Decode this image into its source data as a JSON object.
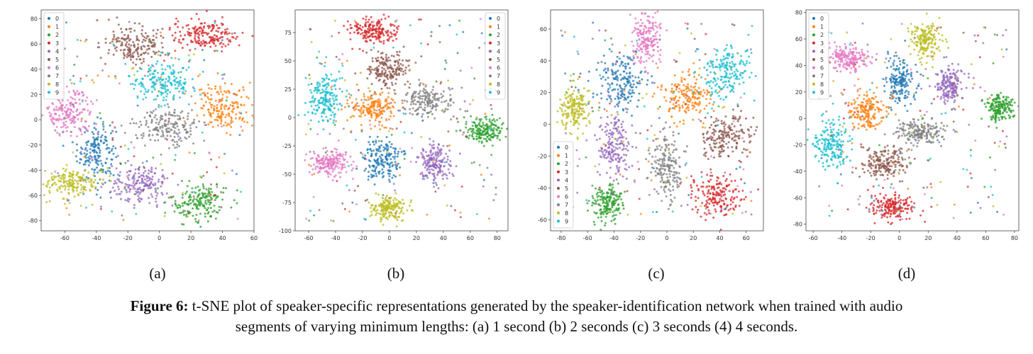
{
  "chart_data": [
    {
      "type": "scatter",
      "id": "a",
      "sublabel": "(a)",
      "xlim": [
        -75,
        60
      ],
      "ylim": [
        -88,
        87
      ],
      "xticks": [
        -60,
        -40,
        -20,
        0,
        20,
        40,
        60
      ],
      "yticks": [
        -80,
        -60,
        -40,
        -20,
        0,
        20,
        40,
        60,
        80
      ],
      "legend": "top-left",
      "clusters": [
        {
          "label": "0",
          "cx": -40,
          "cy": -25,
          "sx": 6,
          "sy": 12
        },
        {
          "label": "1",
          "cx": 42,
          "cy": 10,
          "sx": 9,
          "sy": 9
        },
        {
          "label": "2",
          "cx": 25,
          "cy": -65,
          "sx": 9,
          "sy": 8
        },
        {
          "label": "3",
          "cx": 30,
          "cy": 67,
          "sx": 11,
          "sy": 6
        },
        {
          "label": "4",
          "cx": -12,
          "cy": -52,
          "sx": 9,
          "sy": 8
        },
        {
          "label": "5",
          "cx": -15,
          "cy": 60,
          "sx": 10,
          "sy": 8
        },
        {
          "label": "6",
          "cx": -57,
          "cy": 5,
          "sx": 8,
          "sy": 8
        },
        {
          "label": "7",
          "cx": 5,
          "cy": -5,
          "sx": 10,
          "sy": 7
        },
        {
          "label": "8",
          "cx": -55,
          "cy": -50,
          "sx": 9,
          "sy": 6
        },
        {
          "label": "9",
          "cx": 2,
          "cy": 30,
          "sx": 10,
          "sy": 8
        }
      ]
    },
    {
      "type": "scatter",
      "id": "b",
      "sublabel": "(b)",
      "xlim": [
        -70,
        88
      ],
      "ylim": [
        -100,
        95
      ],
      "xticks": [
        -60,
        -40,
        -20,
        0,
        20,
        40,
        60,
        80
      ],
      "yticks": [
        -100,
        -75,
        -50,
        -25,
        0,
        25,
        50,
        75
      ],
      "legend": "top-right",
      "clusters": [
        {
          "label": "0",
          "cx": -5,
          "cy": -38,
          "sx": 7,
          "sy": 9
        },
        {
          "label": "1",
          "cx": -12,
          "cy": 8,
          "sx": 9,
          "sy": 7
        },
        {
          "label": "2",
          "cx": 70,
          "cy": -12,
          "sx": 7,
          "sy": 6
        },
        {
          "label": "3",
          "cx": -12,
          "cy": 76,
          "sx": 9,
          "sy": 6
        },
        {
          "label": "4",
          "cx": 33,
          "cy": -40,
          "sx": 7,
          "sy": 8
        },
        {
          "label": "5",
          "cx": -2,
          "cy": 43,
          "sx": 9,
          "sy": 8
        },
        {
          "label": "6",
          "cx": -44,
          "cy": -40,
          "sx": 8,
          "sy": 6
        },
        {
          "label": "7",
          "cx": 28,
          "cy": 15,
          "sx": 11,
          "sy": 7
        },
        {
          "label": "8",
          "cx": 0,
          "cy": -80,
          "sx": 6,
          "sy": 6
        },
        {
          "label": "9",
          "cx": -47,
          "cy": 18,
          "sx": 7,
          "sy": 11
        }
      ]
    },
    {
      "type": "scatter",
      "id": "c",
      "sublabel": "(c)",
      "xlim": [
        -88,
        73
      ],
      "ylim": [
        -67,
        72
      ],
      "xticks": [
        -80,
        -60,
        -40,
        -20,
        0,
        20,
        40,
        60
      ],
      "yticks": [
        -60,
        -40,
        -20,
        0,
        20,
        40,
        60
      ],
      "legend": "bottom-left",
      "clusters": [
        {
          "label": "0",
          "cx": -35,
          "cy": 25,
          "sx": 9,
          "sy": 9
        },
        {
          "label": "1",
          "cx": 15,
          "cy": 17,
          "sx": 10,
          "sy": 8
        },
        {
          "label": "2",
          "cx": -45,
          "cy": -50,
          "sx": 6,
          "sy": 6
        },
        {
          "label": "3",
          "cx": 38,
          "cy": -45,
          "sx": 9,
          "sy": 7
        },
        {
          "label": "4",
          "cx": -40,
          "cy": -12,
          "sx": 6,
          "sy": 11
        },
        {
          "label": "5",
          "cx": 45,
          "cy": -8,
          "sx": 10,
          "sy": 7
        },
        {
          "label": "6",
          "cx": -15,
          "cy": 55,
          "sx": 6,
          "sy": 8
        },
        {
          "label": "7",
          "cx": 0,
          "cy": -25,
          "sx": 6,
          "sy": 11
        },
        {
          "label": "8",
          "cx": -70,
          "cy": 10,
          "sx": 6,
          "sy": 7
        },
        {
          "label": "9",
          "cx": 45,
          "cy": 32,
          "sx": 9,
          "sy": 9
        }
      ]
    },
    {
      "type": "scatter",
      "id": "d",
      "sublabel": "(d)",
      "xlim": [
        -65,
        83
      ],
      "ylim": [
        -85,
        82
      ],
      "xticks": [
        -60,
        -40,
        -20,
        0,
        20,
        40,
        60,
        80
      ],
      "yticks": [
        -80,
        -60,
        -40,
        -20,
        0,
        20,
        40,
        60,
        80
      ],
      "legend": "top-left",
      "clusters": [
        {
          "label": "0",
          "cx": 0,
          "cy": 27,
          "sx": 5,
          "sy": 9
        },
        {
          "label": "1",
          "cx": -22,
          "cy": 5,
          "sx": 7,
          "sy": 7
        },
        {
          "label": "2",
          "cx": 70,
          "cy": 8,
          "sx": 5,
          "sy": 5
        },
        {
          "label": "3",
          "cx": -5,
          "cy": -67,
          "sx": 9,
          "sy": 5
        },
        {
          "label": "4",
          "cx": 35,
          "cy": 25,
          "sx": 5,
          "sy": 7
        },
        {
          "label": "5",
          "cx": -10,
          "cy": -33,
          "sx": 8,
          "sy": 6
        },
        {
          "label": "6",
          "cx": -35,
          "cy": 45,
          "sx": 7,
          "sy": 5
        },
        {
          "label": "7",
          "cx": 15,
          "cy": -10,
          "sx": 9,
          "sy": 5
        },
        {
          "label": "8",
          "cx": 18,
          "cy": 60,
          "sx": 5,
          "sy": 7
        },
        {
          "label": "9",
          "cx": -48,
          "cy": -20,
          "sx": 6,
          "sy": 11
        }
      ]
    }
  ],
  "palette": [
    "#1f77b4",
    "#ff7f0e",
    "#2ca02c",
    "#d62728",
    "#9467bd",
    "#8c564b",
    "#e377c2",
    "#7f7f7f",
    "#bcbd22",
    "#17becf"
  ],
  "caption": {
    "label": "Figure 6:",
    "text_line1": " t-SNE plot of speaker-specific representations generated by the speaker-identification network when trained with audio",
    "text_line2": "segments of varying minimum lengths: (a) 1 second (b) 2 seconds (c) 3 seconds (4) 4 seconds."
  }
}
